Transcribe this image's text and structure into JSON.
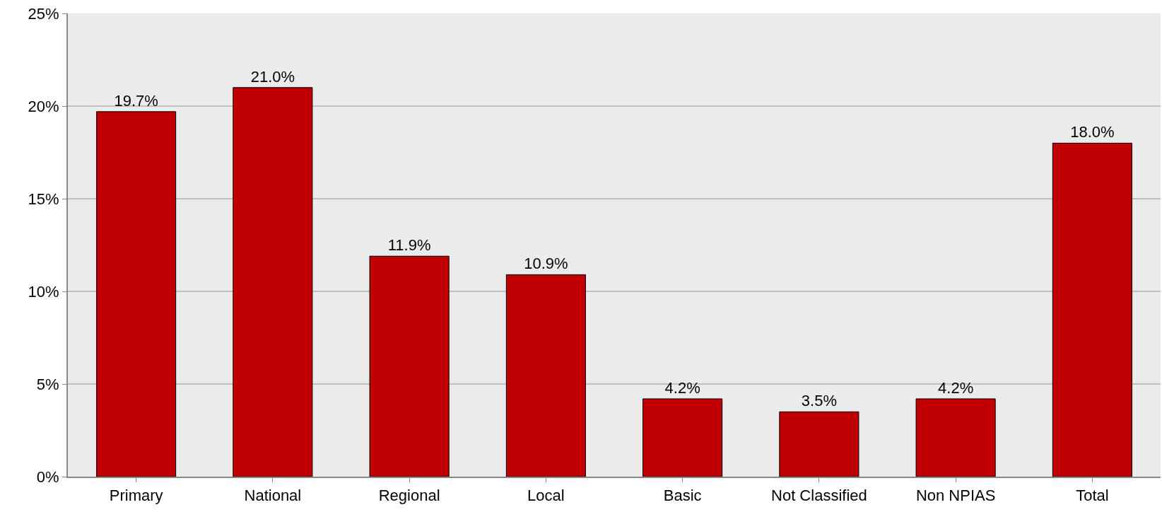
{
  "chart_data": {
    "type": "bar",
    "categories": [
      "Primary",
      "National",
      "Regional",
      "Local",
      "Basic",
      "Not Classified",
      "Non NPIAS",
      "Total"
    ],
    "values": [
      19.7,
      21.0,
      11.9,
      10.9,
      4.2,
      3.5,
      4.2,
      18.0
    ],
    "value_labels": [
      "19.7%",
      "21.0%",
      "11.9%",
      "10.9%",
      "4.2%",
      "3.5%",
      "4.2%",
      "18.0%"
    ],
    "color": "#c00000",
    "ylim": [
      0,
      25
    ],
    "yticks": [
      {
        "value": 0,
        "label": "0%"
      },
      {
        "value": 5,
        "label": "5%"
      },
      {
        "value": 10,
        "label": "10%"
      },
      {
        "value": 15,
        "label": "15%"
      },
      {
        "value": 20,
        "label": "20%"
      },
      {
        "value": 25,
        "label": "25%"
      }
    ],
    "grid": "y",
    "legend": false
  }
}
